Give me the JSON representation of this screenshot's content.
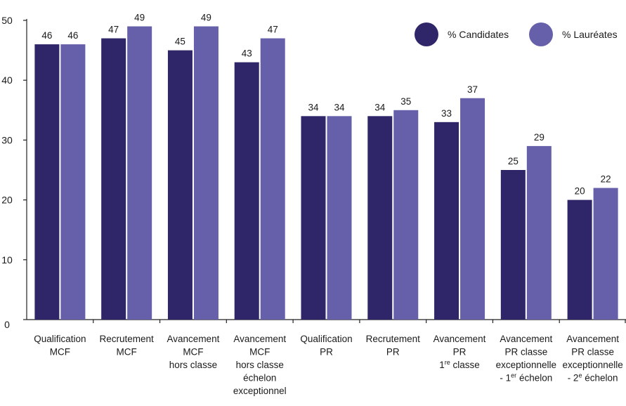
{
  "chart_data": {
    "type": "bar",
    "categories": [
      [
        "Qualification",
        "MCF"
      ],
      [
        "Recrutement",
        "MCF"
      ],
      [
        "Avancement",
        "MCF",
        "hors classe"
      ],
      [
        "Avancement",
        "MCF",
        "hors classe",
        "échelon",
        "exceptionnel"
      ],
      [
        "Qualification",
        "PR"
      ],
      [
        "Recrutement",
        "PR"
      ],
      [
        "Avancement",
        "PR",
        "1re classe"
      ],
      [
        "Avancement",
        "PR classe",
        "exceptionnelle",
        "- 1er échelon"
      ],
      [
        "Avancement",
        "PR classe",
        "exceptionnelle",
        "- 2e échelon"
      ]
    ],
    "series": [
      {
        "name": "% Candidates",
        "color": "#2e2668",
        "values": [
          46,
          47,
          45,
          43,
          34,
          34,
          33,
          25,
          20
        ]
      },
      {
        "name": "% Lauréates",
        "color": "#6660aa",
        "values": [
          46,
          49,
          49,
          47,
          34,
          35,
          37,
          29,
          22
        ]
      }
    ],
    "yticks": [
      0,
      10,
      20,
      30,
      40,
      50
    ],
    "ylim": [
      0,
      50
    ],
    "legend_position": "top-right",
    "grid": false
  }
}
